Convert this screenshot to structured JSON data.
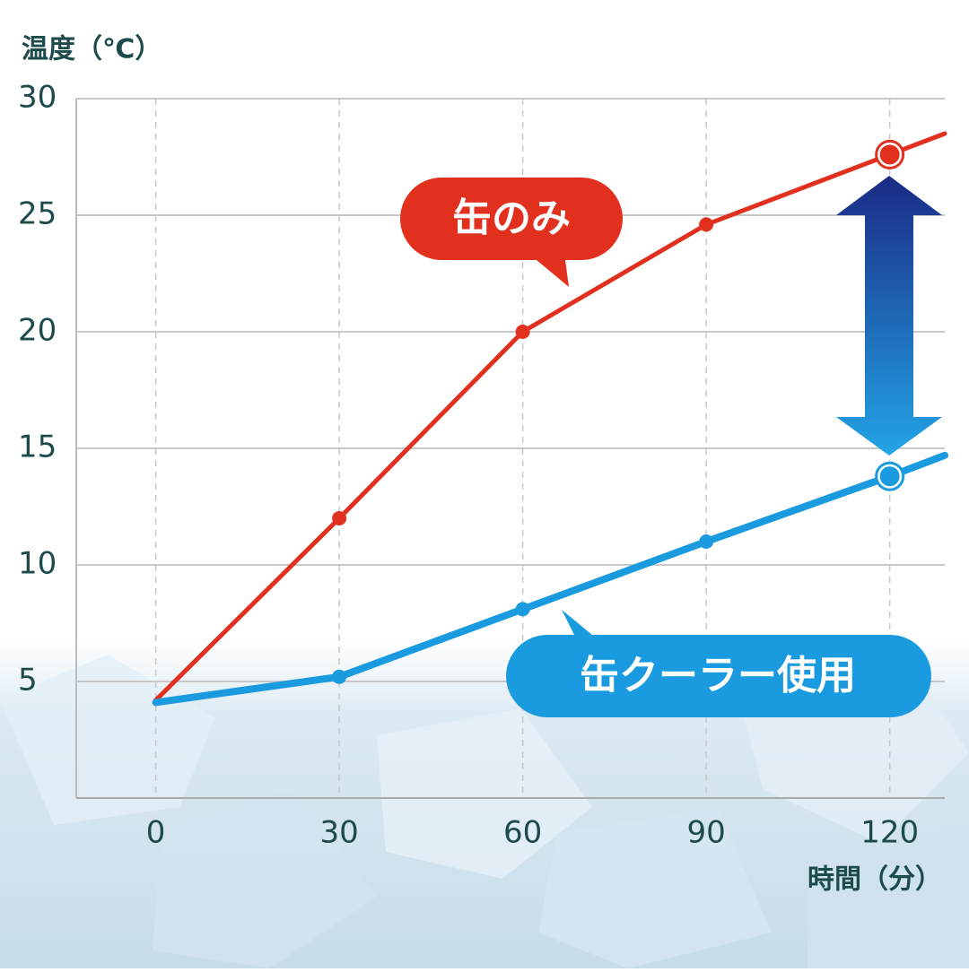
{
  "chart_data": {
    "type": "line",
    "y_label": "温度（℃）",
    "x_label": "時間（分）",
    "x": [
      0,
      30,
      60,
      90,
      120,
      129
    ],
    "series": [
      {
        "name": "缶のみ",
        "color": "#e2301f",
        "values": [
          4.2,
          12.0,
          20.0,
          24.6,
          27.6,
          28.5
        ]
      },
      {
        "name": "缶クーラー使用",
        "color": "#1a9be0",
        "values": [
          4.1,
          5.2,
          8.1,
          11.0,
          13.8,
          14.7
        ]
      }
    ],
    "xlim": [
      -13,
      129
    ],
    "ylim": [
      0,
      30
    ],
    "xticks": [
      0,
      30,
      60,
      90,
      120
    ],
    "yticks": [
      5,
      10,
      15,
      20,
      25,
      30
    ],
    "grid": true
  }
}
